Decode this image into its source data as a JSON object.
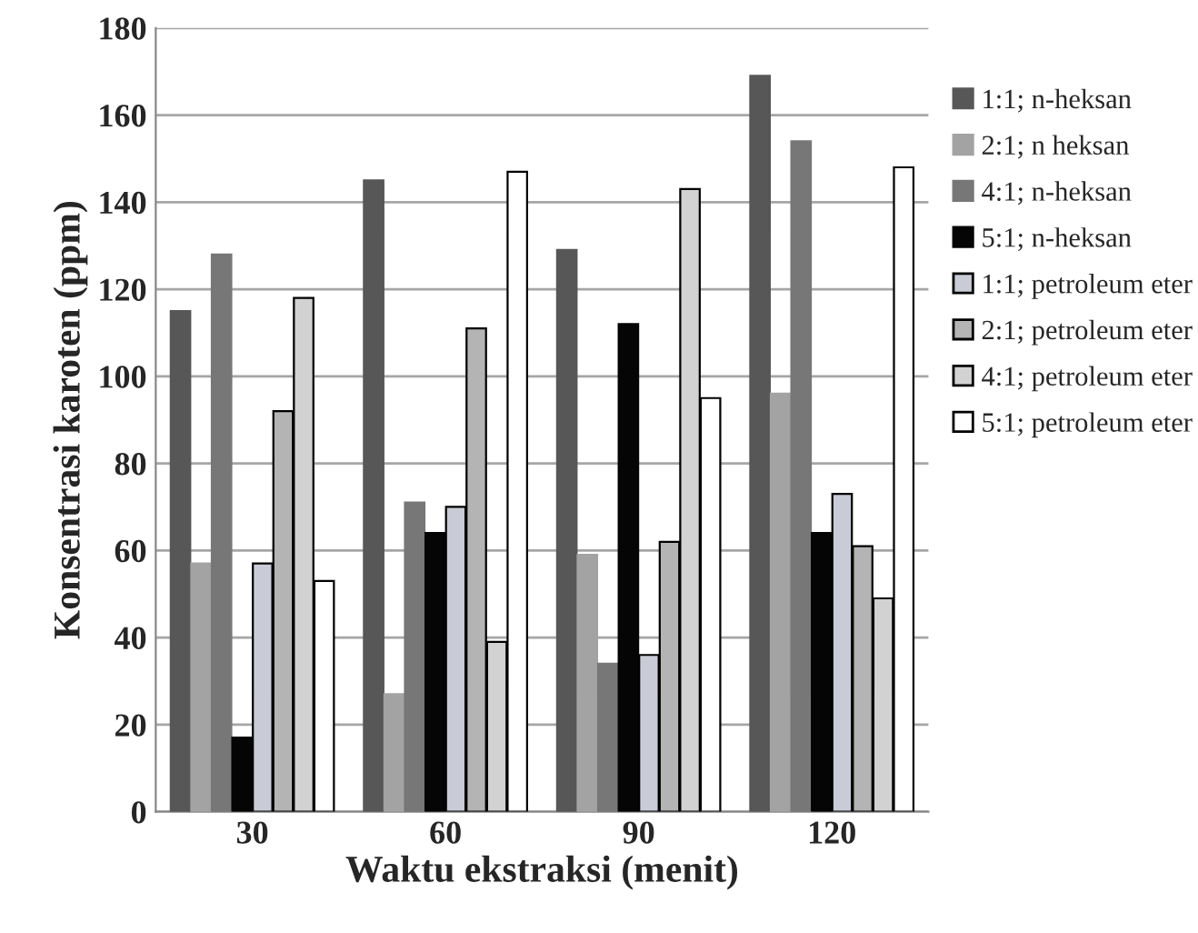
{
  "chart_data": {
    "type": "bar",
    "xlabel": "Waktu ekstraksi (menit)",
    "ylabel": "Konsentrasi karoten (ppm)",
    "categories": [
      "30",
      "60",
      "90",
      "120"
    ],
    "series": [
      {
        "name": "1:1; n-heksan",
        "color": "#575757",
        "values": [
          115,
          145,
          129,
          169
        ]
      },
      {
        "name": "2:1; n heksan",
        "color": "#a3a3a3",
        "values": [
          57,
          27,
          59,
          96
        ]
      },
      {
        "name": "4:1; n-heksan",
        "color": "#777777",
        "values": [
          128,
          71,
          34,
          154
        ]
      },
      {
        "name": "5:1; n-heksan",
        "color": "#050505",
        "values": [
          17,
          64,
          112,
          64
        ]
      },
      {
        "name": "1:1; petroleum eter",
        "color": "#c9ccd6",
        "values": [
          57,
          70,
          36,
          73
        ]
      },
      {
        "name": "2:1; petroleum eter",
        "color": "#b4b4b4",
        "values": [
          92,
          111,
          62,
          61
        ]
      },
      {
        "name": "4:1; petroleum eter",
        "color": "#d2d2d2",
        "values": [
          118,
          39,
          143,
          49
        ]
      },
      {
        "name": "5:1; petroleum eter",
        "color": "#ffffff",
        "values": [
          53,
          147,
          95,
          148
        ]
      }
    ],
    "ylim": [
      0,
      180
    ],
    "yticks": [
      0,
      20,
      40,
      60,
      80,
      100,
      120,
      140,
      160,
      180
    ],
    "grid": "y",
    "legend": "right"
  }
}
